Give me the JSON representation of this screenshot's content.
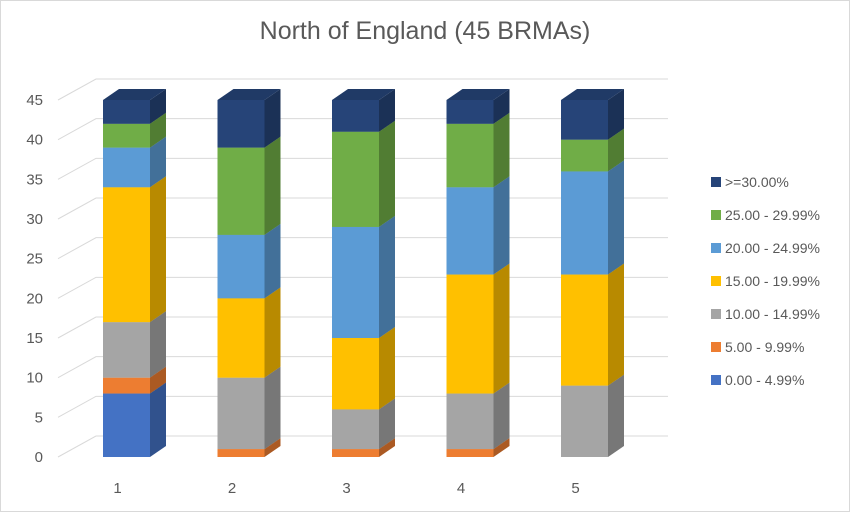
{
  "chart_data": {
    "type": "bar",
    "stacked": true,
    "style": "3d",
    "title": "North of England (45 BRMAs)",
    "xlabel": "",
    "ylabel": "",
    "categories": [
      "1",
      "2",
      "3",
      "4",
      "5"
    ],
    "ylim": [
      0,
      45
    ],
    "yticks": [
      0,
      5,
      10,
      15,
      20,
      25,
      30,
      35,
      40,
      45
    ],
    "grid": true,
    "legend_position": "right",
    "series": [
      {
        "name": "0.00 - 4.99%",
        "color": "#4472c4",
        "values": [
          8,
          0,
          0,
          0,
          0
        ]
      },
      {
        "name": "5.00 - 9.99%",
        "color": "#ed7d31",
        "values": [
          2,
          1,
          1,
          1,
          0
        ]
      },
      {
        "name": "10.00 - 14.99%",
        "color": "#a5a5a5",
        "values": [
          7,
          9,
          5,
          7,
          9
        ]
      },
      {
        "name": "15.00 - 19.99%",
        "color": "#ffc000",
        "values": [
          17,
          10,
          9,
          15,
          14
        ]
      },
      {
        "name": "20.00 - 24.99%",
        "color": "#5b9bd5",
        "values": [
          5,
          8,
          14,
          11,
          13
        ]
      },
      {
        "name": "25.00 - 29.99%",
        "color": "#70ad47",
        "values": [
          3,
          11,
          12,
          8,
          4
        ]
      },
      {
        "name": ">=30.00%",
        "color": "#264478",
        "values": [
          3,
          6,
          4,
          3,
          5
        ]
      }
    ]
  }
}
